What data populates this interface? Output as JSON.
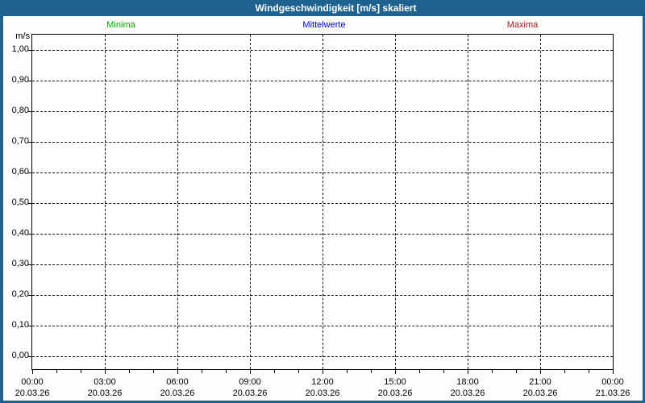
{
  "window": {
    "title": "Windgeschwindigkeit [m/s] skaliert"
  },
  "colors": {
    "frame": "#20628F",
    "title_text": "#FFFFFF",
    "minima": "#00AA00",
    "mittelwerte": "#0000CC",
    "maxima": "#9B1414",
    "grid": "#111111"
  },
  "legend": {
    "items": [
      {
        "label": "Minima",
        "color": "#00AA00"
      },
      {
        "label": "Mittelwerte",
        "color": "#0000CC"
      },
      {
        "label": "Maxima",
        "color": "#9B1414"
      }
    ]
  },
  "chart_data": {
    "type": "line",
    "title": "Windgeschwindigkeit [m/s] skaliert",
    "ylabel": "m/s",
    "xlabel": "",
    "ylim": [
      0.0,
      1.0
    ],
    "xlim_hours": [
      0,
      24
    ],
    "grid": "dashed",
    "legend_position": "top",
    "y_ticks": [
      {
        "value": 1.0,
        "label": "1,00"
      },
      {
        "value": 0.9,
        "label": "0,90"
      },
      {
        "value": 0.8,
        "label": "0,80"
      },
      {
        "value": 0.7,
        "label": "0,70"
      },
      {
        "value": 0.6,
        "label": "0,60"
      },
      {
        "value": 0.5,
        "label": "0,50"
      },
      {
        "value": 0.4,
        "label": "0,40"
      },
      {
        "value": 0.3,
        "label": "0,30"
      },
      {
        "value": 0.2,
        "label": "0,20"
      },
      {
        "value": 0.1,
        "label": "0,10"
      },
      {
        "value": 0.0,
        "label": "0,00"
      }
    ],
    "x_ticks": [
      {
        "hour": 0,
        "time": "00:00",
        "date": "20.03.26"
      },
      {
        "hour": 3,
        "time": "03:00",
        "date": "20.03.26"
      },
      {
        "hour": 6,
        "time": "06:00",
        "date": "20.03.26"
      },
      {
        "hour": 9,
        "time": "09:00",
        "date": "20.03.26"
      },
      {
        "hour": 12,
        "time": "12:00",
        "date": "20.03.26"
      },
      {
        "hour": 15,
        "time": "15:00",
        "date": "20.03.26"
      },
      {
        "hour": 18,
        "time": "18:00",
        "date": "20.03.26"
      },
      {
        "hour": 21,
        "time": "21:00",
        "date": "20.03.26"
      },
      {
        "hour": 24,
        "time": "00:00",
        "date": "21.03.26"
      }
    ],
    "x_minor_tick_hours": 1,
    "series": [
      {
        "name": "Minima",
        "color": "#00AA00",
        "points": []
      },
      {
        "name": "Mittelwerte",
        "color": "#0000CC",
        "points": []
      },
      {
        "name": "Maxima",
        "color": "#9B1414",
        "points": []
      }
    ]
  }
}
